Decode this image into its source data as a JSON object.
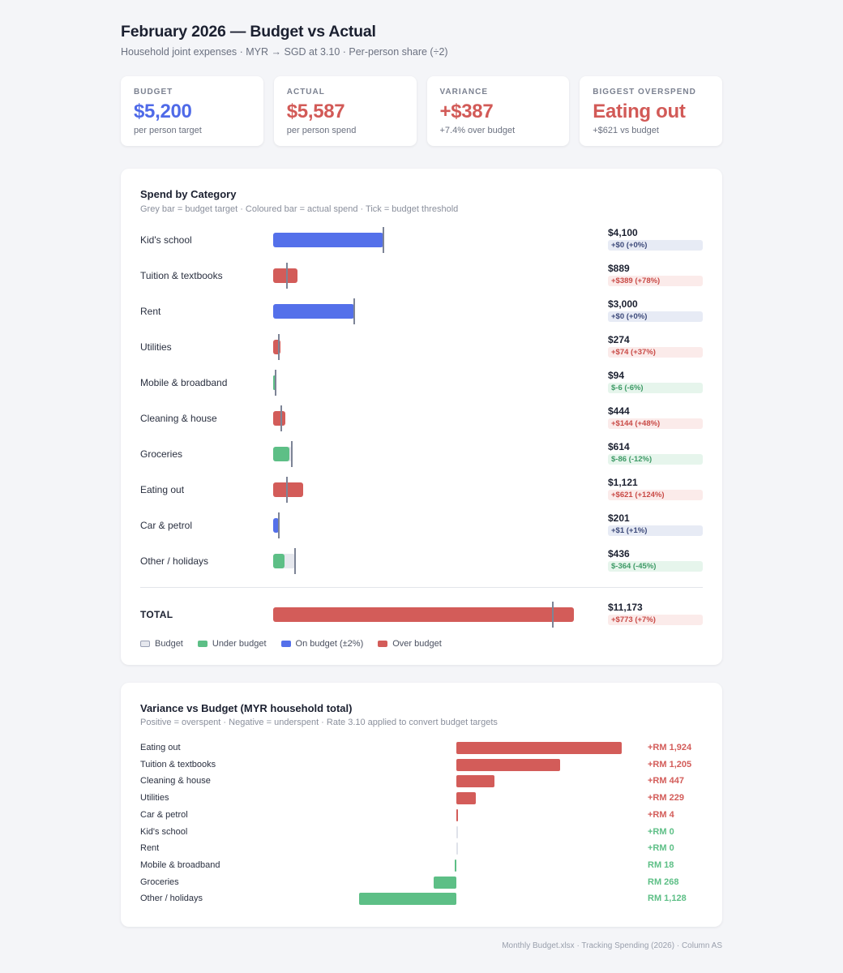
{
  "header": {
    "title": "February 2026 — Budget vs Actual",
    "subtitle": "Household joint expenses · MYR → SGD at 3.10 · Per-person share (÷2)"
  },
  "kpis": [
    {
      "label": "BUDGET",
      "value": "$5,200",
      "sub": "per person target",
      "color": "#4f6ae8"
    },
    {
      "label": "ACTUAL",
      "value": "$5,587",
      "sub": "per person spend",
      "color": "#d25a57"
    },
    {
      "label": "VARIANCE",
      "value": "+$387",
      "sub": "+7.4% over budget",
      "color": "#d25a57"
    },
    {
      "label": "BIGGEST OVERSPEND",
      "value": "Eating out",
      "sub": "+$621 vs budget",
      "color": "#d25a57"
    }
  ],
  "colors": {
    "under": "#5dbf86",
    "on": "#5470ea",
    "over": "#d35c59",
    "budget": "#e6e8ee",
    "tick": "#7d8496"
  },
  "chart_data": [
    {
      "type": "bar",
      "title": "Spend by Category",
      "subtitle": "Grey bar = budget target · Coloured bar = actual spend · Tick = budget threshold",
      "categories": [
        "Kid's school",
        "Tuition & textbooks",
        "Rent",
        "Utilities",
        "Mobile & broadband",
        "Cleaning & house",
        "Groceries",
        "Eating out",
        "Car & petrol",
        "Other / holidays"
      ],
      "series": [
        {
          "name": "Budget",
          "values": [
            4100,
            500,
            3000,
            200,
            100,
            300,
            700,
            500,
            200,
            800
          ]
        },
        {
          "name": "Actual",
          "values": [
            4100,
            889,
            3000,
            274,
            94,
            444,
            614,
            1121,
            201,
            436
          ]
        }
      ],
      "status": [
        "on",
        "over",
        "on",
        "over",
        "under",
        "over",
        "under",
        "over",
        "on",
        "under"
      ],
      "value_labels": [
        "$4,100",
        "$889",
        "$3,000",
        "$274",
        "$94",
        "$444",
        "$614",
        "$1,121",
        "$201",
        "$436"
      ],
      "variance_labels": [
        "+$0 (+0%)",
        "+$389 (+78%)",
        "+$0 (+0%)",
        "+$74 (+37%)",
        "$-6 (-6%)",
        "+$144 (+48%)",
        "$-86 (-12%)",
        "+$621 (+124%)",
        "+$1 (+1%)",
        "$-364 (-45%)"
      ],
      "total": {
        "label": "TOTAL",
        "budget": 10400,
        "actual": 11173,
        "status": "over",
        "value_label": "$11,173",
        "variance_label": "+$773 (+7%)"
      },
      "xlim": [
        0,
        11173
      ],
      "legend": [
        "Budget",
        "Under budget",
        "On budget (±2%)",
        "Over budget"
      ],
      "legend_position": "bottom-left"
    },
    {
      "type": "bar",
      "orientation": "horizontal-diverging",
      "title": "Variance vs Budget (MYR household total)",
      "subtitle": "Positive = overspent · Negative = underspent · Rate 3.10 applied to convert budget targets",
      "categories": [
        "Eating out",
        "Tuition & textbooks",
        "Cleaning & house",
        "Utilities",
        "Car & petrol",
        "Kid's school",
        "Rent",
        "Mobile & broadband",
        "Groceries",
        "Other / holidays"
      ],
      "values": [
        1924,
        1205,
        447,
        229,
        4,
        0,
        0,
        -18,
        -268,
        -1128
      ],
      "value_labels": [
        "+RM 1,924",
        "+RM 1,205",
        "+RM 447",
        "+RM 229",
        "+RM 4",
        "+RM 0",
        "+RM 0",
        "RM 18",
        "RM 268",
        "RM 1,128"
      ],
      "xlim": [
        -1128,
        1924
      ]
    }
  ],
  "footer": "Monthly Budget.xlsx · Tracking Spending (2026) · Column AS"
}
